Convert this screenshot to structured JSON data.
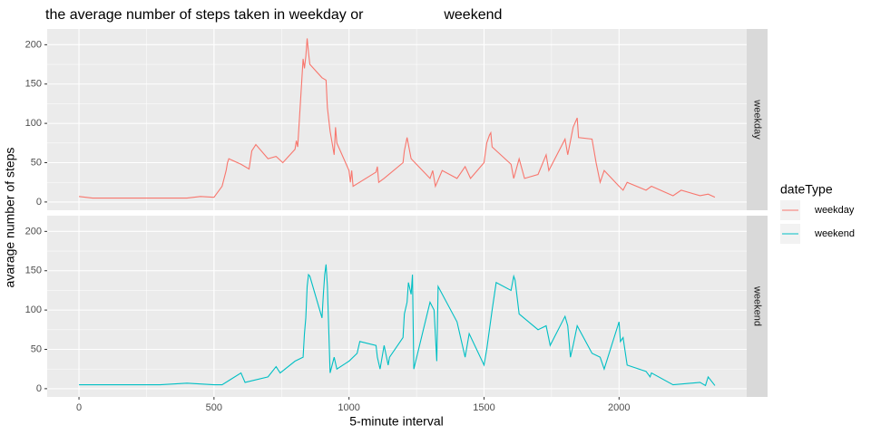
{
  "chart_data": {
    "type": "line",
    "title": "the average number of steps taken in weekday or                    weekend",
    "x_label": "5-minute interval",
    "y_label": "avarage number of steps",
    "legend_title": "dateType",
    "facets": [
      "weekday",
      "weekend"
    ],
    "xlim": [
      -117.75,
      2472.75
    ],
    "xticks": [
      0,
      500,
      1000,
      1500,
      2000
    ],
    "ylim": [
      -10.5,
      220
    ],
    "yticks": [
      0,
      50,
      100,
      150,
      200
    ],
    "grid": true,
    "legend": "right",
    "series": [
      {
        "name": "weekday",
        "color": "#F8766D",
        "x": [
          0,
          50,
          100,
          200,
          300,
          400,
          450,
          500,
          530,
          545,
          550,
          555,
          600,
          630,
          640,
          655,
          700,
          730,
          755,
          800,
          805,
          810,
          830,
          835,
          840,
          845,
          850,
          855,
          900,
          915,
          920,
          930,
          945,
          950,
          955,
          1000,
          1005,
          1010,
          1015,
          1100,
          1105,
          1110,
          1130,
          1200,
          1205,
          1215,
          1230,
          1300,
          1310,
          1320,
          1345,
          1400,
          1430,
          1450,
          1500,
          1510,
          1520,
          1525,
          1530,
          1600,
          1610,
          1630,
          1650,
          1700,
          1730,
          1740,
          1800,
          1810,
          1830,
          1845,
          1850,
          1900,
          1915,
          1930,
          1945,
          2000,
          2015,
          2030,
          2100,
          2120,
          2200,
          2230,
          2300,
          2330,
          2355
        ],
        "values": [
          7,
          5,
          5,
          5,
          5,
          5,
          7,
          6,
          20,
          40,
          50,
          55,
          48,
          42,
          65,
          73,
          55,
          58,
          50,
          67,
          78,
          70,
          182,
          170,
          185,
          208,
          190,
          175,
          158,
          155,
          120,
          90,
          60,
          95,
          75,
          40,
          25,
          40,
          20,
          38,
          45,
          25,
          30,
          50,
          65,
          82,
          55,
          30,
          40,
          20,
          40,
          30,
          45,
          30,
          50,
          75,
          85,
          88,
          70,
          48,
          30,
          55,
          30,
          35,
          60,
          40,
          80,
          60,
          95,
          107,
          82,
          80,
          50,
          25,
          40,
          20,
          15,
          25,
          15,
          20,
          8,
          15,
          8,
          10,
          6
        ]
      },
      {
        "name": "weekend",
        "color": "#00BFC4",
        "x": [
          0,
          100,
          300,
          400,
          500,
          530,
          600,
          615,
          700,
          730,
          745,
          800,
          830,
          835,
          840,
          845,
          850,
          855,
          900,
          905,
          910,
          915,
          920,
          930,
          945,
          955,
          1000,
          1030,
          1040,
          1100,
          1105,
          1115,
          1130,
          1145,
          1150,
          1200,
          1205,
          1215,
          1220,
          1230,
          1235,
          1240,
          1300,
          1315,
          1325,
          1330,
          1400,
          1430,
          1445,
          1500,
          1510,
          1530,
          1545,
          1600,
          1610,
          1615,
          1630,
          1700,
          1730,
          1745,
          1800,
          1810,
          1820,
          1830,
          1845,
          1900,
          1930,
          1945,
          2000,
          2005,
          2015,
          2030,
          2100,
          2115,
          2120,
          2200,
          2300,
          2320,
          2330,
          2355
        ],
        "values": [
          5,
          5,
          5,
          7,
          5,
          5,
          20,
          8,
          15,
          28,
          20,
          35,
          40,
          70,
          90,
          130,
          145,
          143,
          90,
          120,
          145,
          158,
          130,
          20,
          40,
          25,
          35,
          45,
          60,
          55,
          40,
          25,
          55,
          30,
          40,
          65,
          95,
          110,
          135,
          120,
          145,
          25,
          110,
          100,
          35,
          130,
          85,
          40,
          70,
          30,
          50,
          100,
          135,
          125,
          143,
          138,
          95,
          75,
          80,
          55,
          92,
          80,
          40,
          55,
          80,
          45,
          40,
          25,
          85,
          60,
          65,
          30,
          22,
          15,
          20,
          5,
          8,
          4,
          15,
          4
        ]
      }
    ]
  }
}
